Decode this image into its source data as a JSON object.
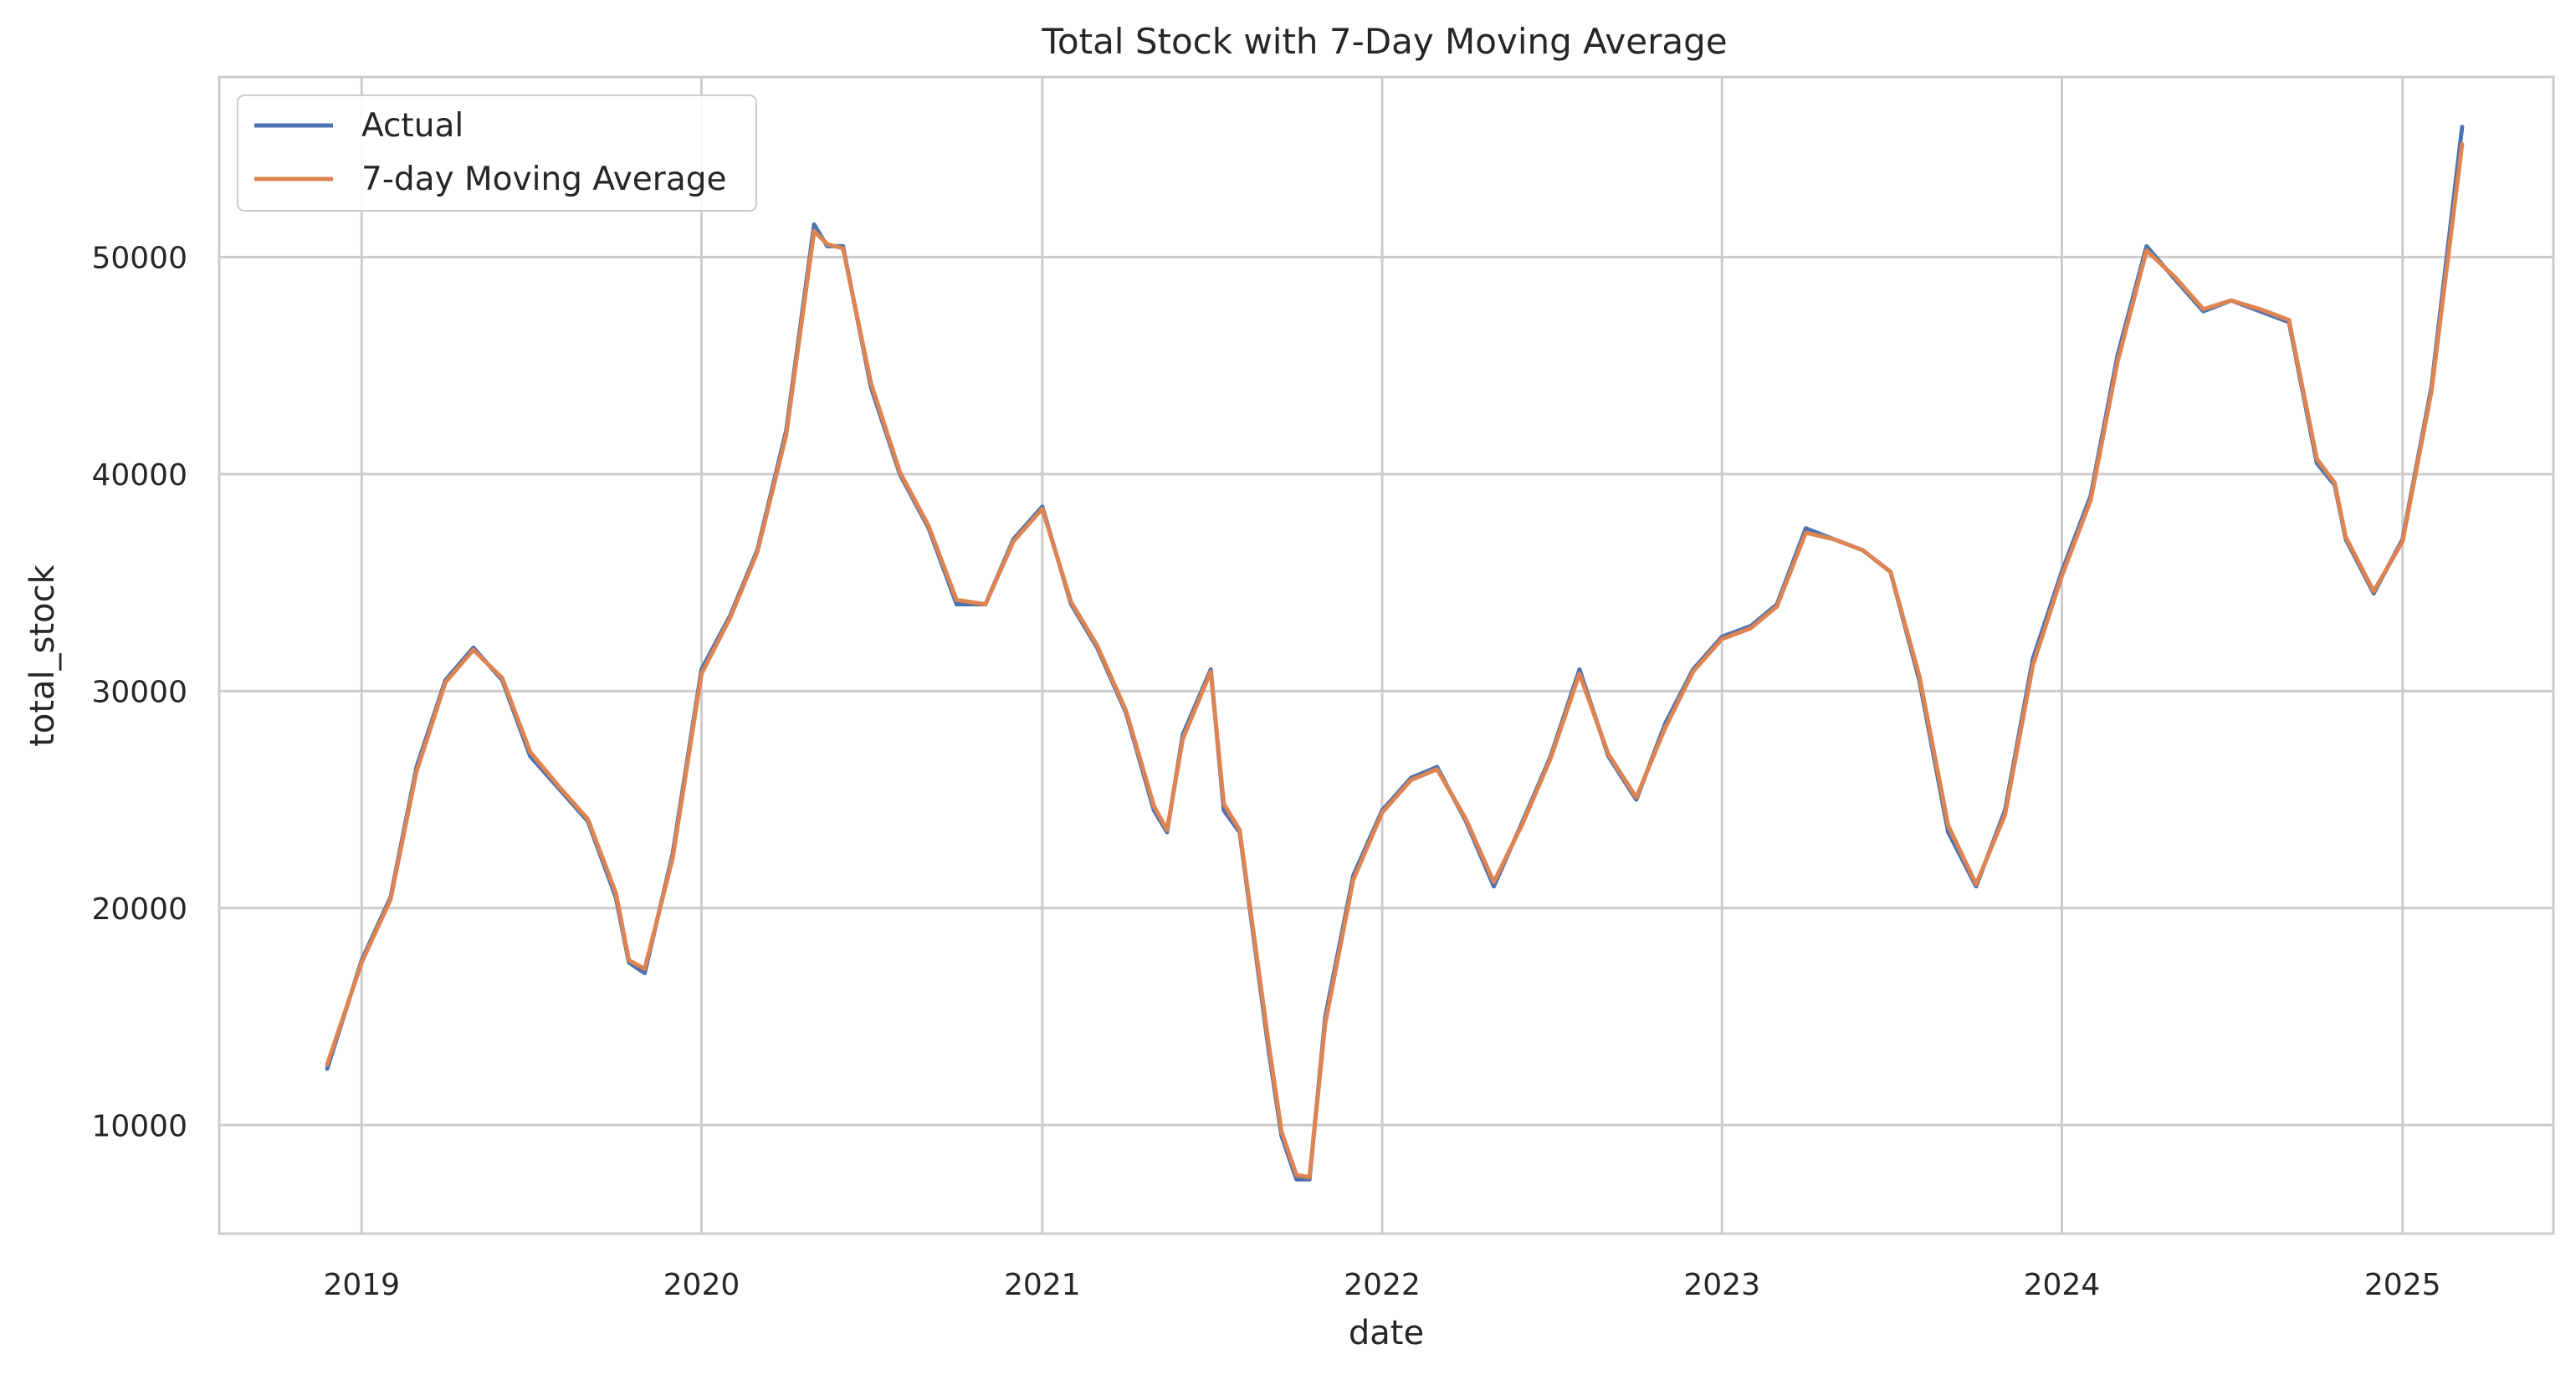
{
  "chart_data": {
    "type": "line",
    "title": "Total Stock with 7-Day Moving Average",
    "xlabel": "date",
    "ylabel": "total_stock",
    "x_ticks": [
      "2019",
      "2020",
      "2021",
      "2022",
      "2023",
      "2024",
      "2025"
    ],
    "y_ticks": [
      "10000",
      "20000",
      "30000",
      "40000",
      "50000"
    ],
    "xlim": [
      "2018-08-01",
      "2025-06-12"
    ],
    "ylim": [
      5000,
      58300
    ],
    "grid": true,
    "legend_position": "top-left",
    "x": [
      "2018-11-25",
      "2019-01-01",
      "2019-02-01",
      "2019-03-01",
      "2019-04-01",
      "2019-05-01",
      "2019-06-01",
      "2019-07-01",
      "2019-08-01",
      "2019-09-01",
      "2019-10-01",
      "2019-10-15",
      "2019-11-01",
      "2019-12-01",
      "2020-01-01",
      "2020-02-01",
      "2020-03-01",
      "2020-04-01",
      "2020-05-01",
      "2020-05-15",
      "2020-06-01",
      "2020-07-01",
      "2020-08-01",
      "2020-09-01",
      "2020-10-01",
      "2020-11-01",
      "2020-12-01",
      "2021-01-01",
      "2021-02-01",
      "2021-03-01",
      "2021-04-01",
      "2021-05-01",
      "2021-05-15",
      "2021-06-01",
      "2021-07-01",
      "2021-07-15",
      "2021-08-01",
      "2021-09-01",
      "2021-09-15",
      "2021-10-01",
      "2021-10-15",
      "2021-11-01",
      "2021-12-01",
      "2022-01-01",
      "2022-02-01",
      "2022-03-01",
      "2022-04-01",
      "2022-05-01",
      "2022-06-01",
      "2022-07-01",
      "2022-08-01",
      "2022-09-01",
      "2022-10-01",
      "2022-11-01",
      "2022-12-01",
      "2023-01-01",
      "2023-02-01",
      "2023-03-01",
      "2023-04-01",
      "2023-05-01",
      "2023-06-01",
      "2023-07-01",
      "2023-08-01",
      "2023-09-01",
      "2023-10-01",
      "2023-11-01",
      "2023-12-01",
      "2024-01-01",
      "2024-02-01",
      "2024-03-01",
      "2024-04-01",
      "2024-05-01",
      "2024-06-01",
      "2024-07-01",
      "2024-08-01",
      "2024-09-01",
      "2024-10-01",
      "2024-10-20",
      "2024-11-01",
      "2024-12-01",
      "2025-01-01",
      "2025-02-01",
      "2025-03-06"
    ],
    "series": [
      {
        "name": "Actual",
        "color": "#4c72b0",
        "values": [
          12600,
          17600,
          20500,
          26500,
          30500,
          32000,
          30500,
          27000,
          25500,
          24000,
          20500,
          17500,
          17000,
          22500,
          31000,
          33500,
          36500,
          42000,
          51500,
          50500,
          50500,
          44000,
          40000,
          37500,
          34000,
          34000,
          37000,
          38500,
          34000,
          32000,
          29000,
          24500,
          23500,
          28000,
          31000,
          24500,
          23500,
          13500,
          9500,
          7500,
          7500,
          15000,
          21500,
          24500,
          26000,
          26500,
          24000,
          21000,
          24000,
          27000,
          31000,
          27000,
          25000,
          28500,
          31000,
          32500,
          33000,
          34000,
          37500,
          37000,
          36500,
          35500,
          30500,
          23500,
          21000,
          24500,
          31500,
          35500,
          39000,
          45500,
          50500,
          49000,
          47500,
          48000,
          47500,
          47000,
          40500,
          39500,
          37000,
          34500,
          37000,
          44000,
          56000
        ]
      },
      {
        "name": "7-day Moving Average",
        "color": "#dd8452",
        "values": [
          12800,
          17500,
          20400,
          26300,
          30400,
          31900,
          30600,
          27200,
          25600,
          24100,
          20700,
          17600,
          17200,
          22300,
          30800,
          33400,
          36400,
          41800,
          51200,
          50600,
          50400,
          44200,
          40100,
          37600,
          34200,
          34000,
          36900,
          38400,
          34100,
          32100,
          29100,
          24700,
          23600,
          27800,
          30900,
          24800,
          23600,
          13800,
          9700,
          7700,
          7600,
          14700,
          21300,
          24400,
          25900,
          26400,
          24100,
          21200,
          23900,
          26900,
          30800,
          27100,
          25100,
          28300,
          30900,
          32400,
          32900,
          33900,
          37300,
          37000,
          36500,
          35500,
          30700,
          23800,
          21100,
          24300,
          31200,
          35300,
          38800,
          45200,
          50300,
          49100,
          47600,
          48000,
          47600,
          47100,
          40700,
          39600,
          37100,
          34600,
          36900,
          43800,
          55200
        ]
      }
    ]
  }
}
